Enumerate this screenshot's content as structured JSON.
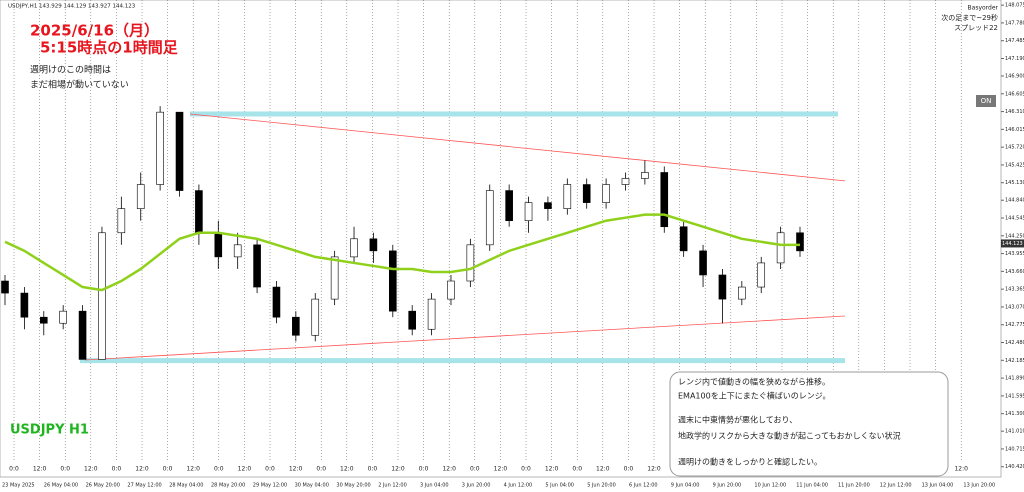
{
  "chart_data": {
    "type": "candlestick",
    "title": "2025/6/16（月）",
    "subtitle": "5:15時点の1時間足",
    "note": [
      "週明けのこの時間は",
      "まだ相場が動いていない"
    ],
    "symbol_label": "USDJPY H1",
    "header": "USDJPY,H1  143.929 144.129 143.927 144.123",
    "indicator_panel": [
      "Basyorder",
      "次の足まで~29秒",
      "スプレッド22"
    ],
    "button": "ON",
    "info_box": [
      "レンジ内で値動きの幅を狭めながら推移。",
      "EMA100を上下にまたぐ横ばいのレンジ。",
      "週末に中東情勢が悪化しており、",
      "地政学的リスクから大きな動きが起こってもおかしくない状況",
      "週明けの動きをしっかりと確認したい。"
    ],
    "current_price": 144.123,
    "open": [
      143.5,
      143.3,
      142.9,
      142.8,
      143.0,
      142.2,
      144.3,
      144.7,
      145.1,
      146.3,
      145.0,
      144.3,
      143.9,
      144.1,
      143.4,
      142.9,
      142.6,
      143.2,
      143.9,
      144.2,
      144.0,
      143.0,
      142.7,
      143.2,
      143.5,
      144.1,
      145.0,
      144.5,
      144.8,
      144.7,
      145.1,
      144.8,
      145.1,
      145.2,
      145.3,
      144.4,
      144.0,
      143.6,
      143.2,
      143.4,
      143.8,
      144.3
    ],
    "high": [
      143.6,
      143.4,
      143.0,
      143.1,
      143.1,
      144.4,
      144.9,
      145.3,
      146.4,
      146.3,
      145.1,
      144.5,
      144.3,
      144.2,
      143.5,
      143.0,
      143.3,
      144.0,
      144.4,
      144.3,
      144.1,
      143.1,
      143.3,
      143.6,
      144.2,
      145.1,
      145.1,
      144.9,
      144.9,
      145.2,
      145.2,
      145.2,
      145.3,
      145.5,
      145.4,
      144.5,
      144.1,
      143.7,
      143.5,
      143.9,
      144.4,
      144.4
    ],
    "low": [
      143.1,
      142.7,
      142.6,
      142.7,
      142.2,
      142.2,
      144.1,
      144.5,
      145.0,
      144.9,
      144.1,
      143.7,
      143.7,
      143.3,
      142.8,
      142.5,
      142.5,
      143.1,
      143.8,
      143.8,
      142.9,
      142.6,
      142.6,
      143.1,
      143.4,
      144.0,
      144.4,
      144.3,
      144.5,
      144.6,
      144.7,
      144.7,
      145.0,
      145.1,
      144.3,
      143.9,
      143.4,
      142.8,
      143.1,
      143.3,
      143.7,
      143.9
    ],
    "close": [
      143.3,
      142.9,
      142.8,
      143.0,
      142.2,
      144.3,
      144.7,
      145.1,
      146.3,
      145.0,
      144.3,
      143.9,
      144.1,
      143.4,
      142.9,
      142.6,
      143.2,
      143.9,
      144.2,
      144.0,
      143.0,
      142.7,
      143.2,
      143.5,
      144.1,
      145.0,
      144.5,
      144.8,
      144.7,
      145.1,
      144.8,
      145.1,
      145.2,
      145.3,
      144.4,
      144.0,
      143.6,
      143.2,
      143.4,
      143.8,
      144.3,
      144.0
    ],
    "ema": {
      "color": "#8fd11a",
      "values": [
        144.15,
        144.0,
        143.8,
        143.6,
        143.4,
        143.35,
        143.5,
        143.7,
        143.95,
        144.2,
        144.3,
        144.3,
        144.25,
        144.2,
        144.1,
        144.0,
        143.9,
        143.85,
        143.8,
        143.75,
        143.7,
        143.7,
        143.65,
        143.65,
        143.7,
        143.85,
        144.0,
        144.1,
        144.2,
        144.3,
        144.4,
        144.5,
        144.55,
        144.6,
        144.6,
        144.5,
        144.4,
        144.3,
        144.2,
        144.15,
        144.1,
        144.1
      ]
    },
    "trendlines": [
      {
        "start": 146.27,
        "end": 145.16,
        "color": "#ff5555"
      },
      {
        "start": 142.19,
        "end": 142.92,
        "color": "#ff5555"
      }
    ],
    "zones": [
      {
        "value": 146.27,
        "color": "#a6e4ea"
      },
      {
        "value": 142.18,
        "color": "#a6e4ea"
      }
    ],
    "session_labels": [
      "0:0",
      "12:0",
      "0:0",
      "12:0",
      "0:0",
      "12:0",
      "0:0",
      "12:0",
      "0:0",
      "12:0",
      "0:0",
      "12:0",
      "0:0",
      "12:0",
      "0:0",
      "12:0",
      "0:0",
      "12:0",
      "0:0",
      "12:0",
      "0:0",
      "12:0",
      "0:0",
      "12:0",
      "0:0",
      "12:0",
      "0:0",
      "12:0",
      "0:0",
      "12:0",
      "0:0",
      "12:0",
      "0:0",
      "12:0",
      "0:0",
      "12:0",
      "0:0",
      "12:0"
    ],
    "x_labels": [
      "23 May 2025",
      "26 May 04:00",
      "26 May 20:00",
      "27 May 12:00",
      "28 May 04:00",
      "28 May 20:00",
      "29 May 12:00",
      "30 May 04:00",
      "30 May 20:00",
      "2 Jun 12:00",
      "3 Jun 04:00",
      "3 Jun 20:00",
      "4 Jun 12:00",
      "5 Jun 04:00",
      "5 Jun 20:00",
      "6 Jun 12:00",
      "9 Jun 04:00",
      "9 Jun 20:00",
      "10 Jun 12:00",
      "11 Jun 04:00",
      "11 Jun 20:00",
      "12 Jun 12:00",
      "13 Jun 04:00",
      "13 Jun 20:00"
    ],
    "ylim": [
      140.25,
      148.16
    ],
    "yticks": [
      148.075,
      {
        "value": 147.78,
        "label": "147.780"
      },
      147.485,
      {
        "value": 147.19,
        "label": "147.190"
      },
      {
        "value": 146.9,
        "label": "146.900"
      },
      146.605,
      {
        "value": 146.31,
        "label": "146.310"
      },
      146.015,
      {
        "value": 145.72,
        "label": "145.720"
      },
      145.425,
      {
        "value": 145.13,
        "label": "145.130"
      },
      {
        "value": 144.84,
        "label": "144.840"
      },
      144.545,
      {
        "value": 144.25,
        "label": "144.250"
      },
      143.955,
      {
        "value": 143.66,
        "label": "143.660"
      },
      143.365,
      {
        "value": 143.07,
        "label": "143.070"
      },
      142.775,
      {
        "value": 142.48,
        "label": "142.480"
      },
      142.185,
      {
        "value": 141.89,
        "label": "141.890"
      },
      141.595,
      {
        "value": 141.3,
        "label": "141.300"
      },
      {
        "value": 141.01,
        "label": "141.010"
      },
      140.715,
      {
        "value": 140.42,
        "label": "140.420"
      }
    ]
  }
}
